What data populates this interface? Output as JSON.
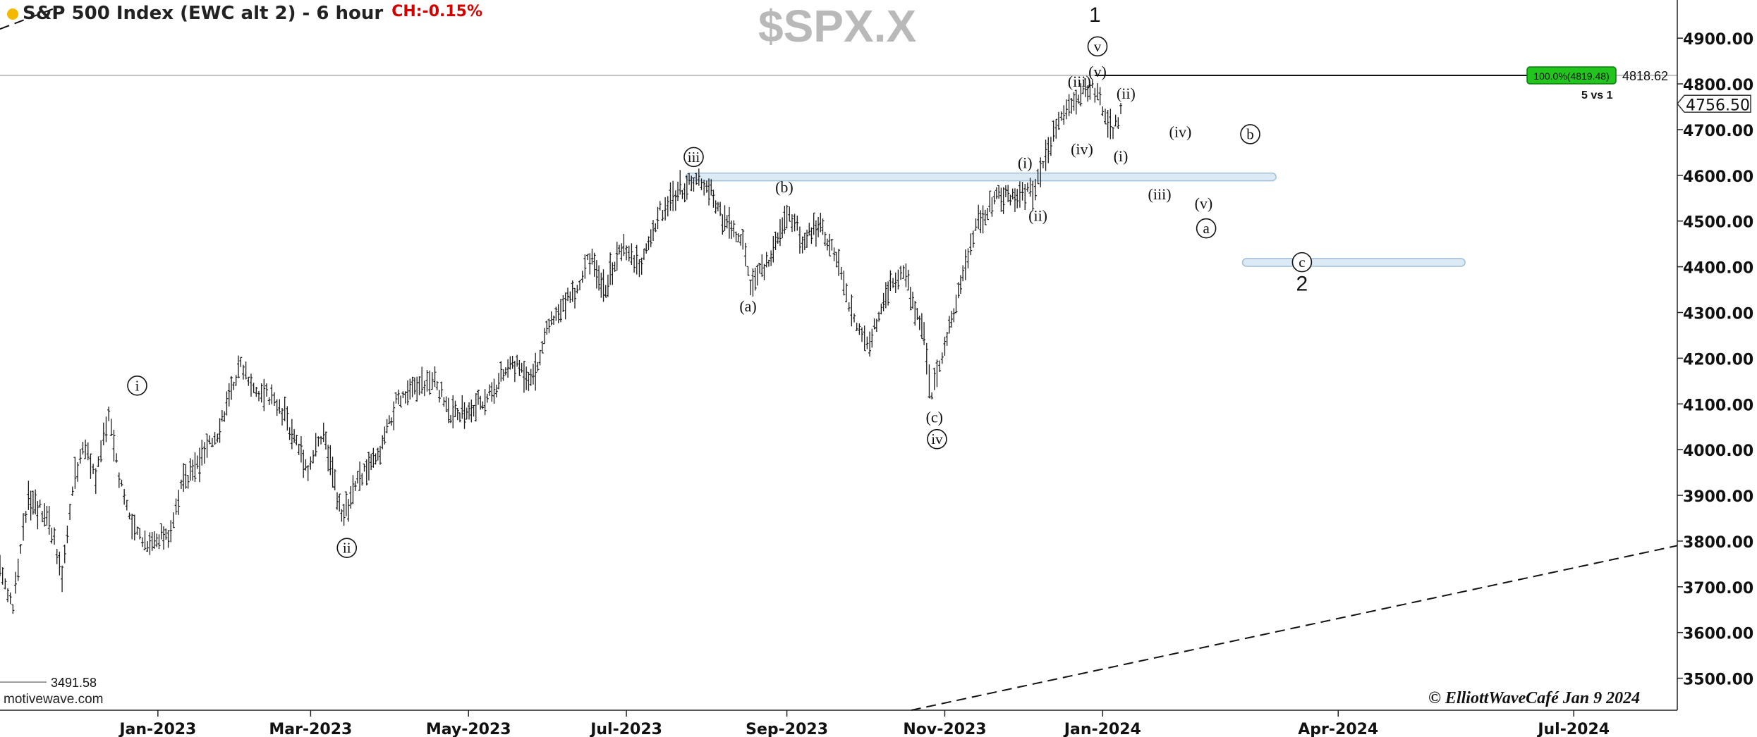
{
  "header": {
    "title": "S&P 500 Index (EWC alt 2) - 6 hour",
    "change": "CH:-0.15%",
    "symbol": "$SPX.X"
  },
  "footer": {
    "source": "motivewave.com",
    "copyright": "© ElliottWaveCafé Jan 9 2024"
  },
  "chart_data": {
    "type": "ohlc",
    "title": "S&P 500 Index (EWC alt 2) - 6 hour",
    "ylim": [
      3430,
      4965
    ],
    "y_ticks": [
      3500,
      3600,
      3700,
      3800,
      3900,
      4000,
      4100,
      4200,
      4300,
      4400,
      4500,
      4600,
      4700,
      4800,
      4900
    ],
    "y_tick_labels": [
      "3500.00",
      "3600.00",
      "3700.00",
      "3800.00",
      "3900.00",
      "4000.00",
      "4100.00",
      "4200.00",
      "4300.00",
      "4400.00",
      "4500.00",
      "4600.00",
      "4700.00",
      "4800.00",
      "4900.00"
    ],
    "x_range": [
      "2022-11-01",
      "2024-08-10"
    ],
    "x_ticks": [
      "2023-01-01",
      "2023-03-01",
      "2023-05-01",
      "2023-07-01",
      "2023-09-01",
      "2023-11-01",
      "2024-01-01",
      "2024-04-01",
      "2024-07-01"
    ],
    "x_tick_labels": [
      "Jan-2023",
      "Mar-2023",
      "May-2023",
      "Jul-2023",
      "Sep-2023",
      "Nov-2023",
      "Jan-2024",
      "Apr-2024",
      "Jul-2024"
    ],
    "current_price": "4756.50",
    "price_path": [
      {
        "x": "2022-11-01",
        "y": 3740
      },
      {
        "x": "2022-11-06",
        "y": 3660
      },
      {
        "x": "2022-11-12",
        "y": 3900
      },
      {
        "x": "2022-11-20",
        "y": 3850
      },
      {
        "x": "2022-11-25",
        "y": 3720
      },
      {
        "x": "2022-11-30",
        "y": 3950
      },
      {
        "x": "2022-12-04",
        "y": 4010
      },
      {
        "x": "2022-12-08",
        "y": 3940
      },
      {
        "x": "2022-12-13",
        "y": 4080
      },
      {
        "x": "2022-12-17",
        "y": 3950
      },
      {
        "x": "2022-12-22",
        "y": 3830
      },
      {
        "x": "2022-12-28",
        "y": 3800
      },
      {
        "x": "2023-01-05",
        "y": 3810
      },
      {
        "x": "2023-01-10",
        "y": 3920
      },
      {
        "x": "2023-01-18",
        "y": 3980
      },
      {
        "x": "2023-01-24",
        "y": 4040
      },
      {
        "x": "2023-02-02",
        "y": 4190
      },
      {
        "x": "2023-02-08",
        "y": 4130
      },
      {
        "x": "2023-02-14",
        "y": 4110
      },
      {
        "x": "2023-02-20",
        "y": 4060
      },
      {
        "x": "2023-02-28",
        "y": 3960
      },
      {
        "x": "2023-03-06",
        "y": 4040
      },
      {
        "x": "2023-03-13",
        "y": 3850
      },
      {
        "x": "2023-03-20",
        "y": 3940
      },
      {
        "x": "2023-03-27",
        "y": 3980
      },
      {
        "x": "2023-04-03",
        "y": 4100
      },
      {
        "x": "2023-04-12",
        "y": 4140
      },
      {
        "x": "2023-04-18",
        "y": 4150
      },
      {
        "x": "2023-04-25",
        "y": 4070
      },
      {
        "x": "2023-05-03",
        "y": 4090
      },
      {
        "x": "2023-05-10",
        "y": 4130
      },
      {
        "x": "2023-05-18",
        "y": 4190
      },
      {
        "x": "2023-05-26",
        "y": 4160
      },
      {
        "x": "2023-06-02",
        "y": 4280
      },
      {
        "x": "2023-06-12",
        "y": 4350
      },
      {
        "x": "2023-06-16",
        "y": 4420
      },
      {
        "x": "2023-06-23",
        "y": 4360
      },
      {
        "x": "2023-06-30",
        "y": 4450
      },
      {
        "x": "2023-07-06",
        "y": 4400
      },
      {
        "x": "2023-07-14",
        "y": 4520
      },
      {
        "x": "2023-07-20",
        "y": 4560
      },
      {
        "x": "2023-07-27",
        "y": 4590
      },
      {
        "x": "2023-08-01",
        "y": 4580
      },
      {
        "x": "2023-08-08",
        "y": 4500
      },
      {
        "x": "2023-08-15",
        "y": 4450
      },
      {
        "x": "2023-08-18",
        "y": 4360
      },
      {
        "x": "2023-08-25",
        "y": 4410
      },
      {
        "x": "2023-09-01",
        "y": 4520
      },
      {
        "x": "2023-09-07",
        "y": 4460
      },
      {
        "x": "2023-09-14",
        "y": 4500
      },
      {
        "x": "2023-09-21",
        "y": 4400
      },
      {
        "x": "2023-09-27",
        "y": 4280
      },
      {
        "x": "2023-10-03",
        "y": 4230
      },
      {
        "x": "2023-10-11",
        "y": 4370
      },
      {
        "x": "2023-10-17",
        "y": 4380
      },
      {
        "x": "2023-10-24",
        "y": 4250
      },
      {
        "x": "2023-10-27",
        "y": 4120
      },
      {
        "x": "2023-11-01",
        "y": 4230
      },
      {
        "x": "2023-11-08",
        "y": 4380
      },
      {
        "x": "2023-11-14",
        "y": 4500
      },
      {
        "x": "2023-11-21",
        "y": 4550
      },
      {
        "x": "2023-11-29",
        "y": 4560
      },
      {
        "x": "2023-12-05",
        "y": 4570
      },
      {
        "x": "2023-12-08",
        "y": 4600
      },
      {
        "x": "2023-12-14",
        "y": 4710
      },
      {
        "x": "2023-12-20",
        "y": 4760
      },
      {
        "x": "2023-12-28",
        "y": 4790
      },
      {
        "x": "2024-01-02",
        "y": 4740
      },
      {
        "x": "2024-01-05",
        "y": 4690
      },
      {
        "x": "2024-01-09",
        "y": 4756
      }
    ],
    "resistance_line": {
      "y": 4818.62,
      "label": "4818.62",
      "box_label": "100.0%(4819.48)",
      "sub_label": "5 vs 1"
    },
    "low_ref": {
      "y": 3491.58,
      "label": "3491.58"
    },
    "zones": [
      {
        "x1": "2023-07-24",
        "x2": "2024-03-08",
        "ylo": 4588,
        "yhi": 4605
      },
      {
        "x1": "2024-02-24",
        "x2": "2024-05-20",
        "ylo": 4401,
        "yhi": 4418
      }
    ],
    "trendlines": [
      {
        "x1": "2022-11-01",
        "y1": 4920,
        "x2": "2022-11-22",
        "y2": 4965
      },
      {
        "x1": "2023-10-19",
        "y1": 3430,
        "x2": "2024-08-10",
        "y2": 3790
      }
    ],
    "wave_labels": [
      {
        "text": "i",
        "x": "2022-12-24",
        "y": 4140,
        "circled": true
      },
      {
        "text": "ii",
        "x": "2023-03-15",
        "y": 3785,
        "circled": true
      },
      {
        "text": "iii",
        "x": "2023-07-27",
        "y": 4640,
        "circled": true
      },
      {
        "text": "(b)",
        "x": "2023-08-31",
        "y": 4575
      },
      {
        "text": "(a)",
        "x": "2023-08-17",
        "y": 4315
      },
      {
        "text": "(c)",
        "x": "2023-10-28",
        "y": 4072
      },
      {
        "text": "iv",
        "x": "2023-10-29",
        "y": 4023,
        "circled": true
      },
      {
        "text": "(i)",
        "x": "2023-12-02",
        "y": 4628
      },
      {
        "text": "(ii)",
        "x": "2023-12-07",
        "y": 4513
      },
      {
        "text": "(iii)",
        "x": "2023-12-23",
        "y": 4806
      },
      {
        "text": "(iv)",
        "x": "2023-12-24",
        "y": 4658
      },
      {
        "text": "(v)",
        "x": "2023-12-30",
        "y": 4828
      },
      {
        "text": "v",
        "x": "2023-12-30",
        "y": 4882,
        "circled": true
      },
      {
        "text": "1",
        "x": "2023-12-29",
        "y": 4948
      },
      {
        "text": "(ii)",
        "x": "2024-01-10",
        "y": 4780
      },
      {
        "text": "(i)",
        "x": "2024-01-08",
        "y": 4643
      },
      {
        "text": "(iv)",
        "x": "2024-01-31",
        "y": 4696
      },
      {
        "text": "b",
        "x": "2024-02-27",
        "y": 4690,
        "circled": true
      },
      {
        "text": "(iii)",
        "x": "2024-01-23",
        "y": 4560
      },
      {
        "text": "(v)",
        "x": "2024-02-09",
        "y": 4540
      },
      {
        "text": "a",
        "x": "2024-02-10",
        "y": 4484,
        "circled": true
      },
      {
        "text": "c",
        "x": "2024-03-18",
        "y": 4410,
        "circled": true
      },
      {
        "text": "2",
        "x": "2024-03-18",
        "y": 4360
      }
    ]
  }
}
